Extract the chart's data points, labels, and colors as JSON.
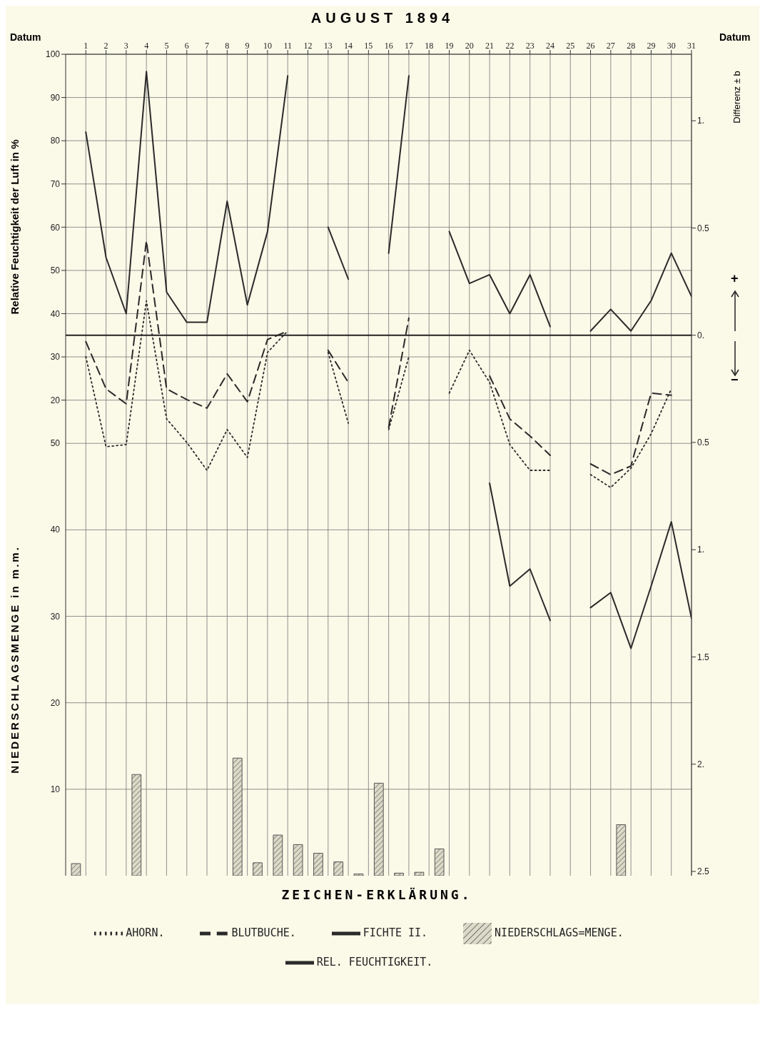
{
  "chart_data": {
    "type": "line",
    "title": "AUGUST 1894",
    "xlabel": "Datum",
    "ylabel": "Relative Feuchtigkeit der Luft in %",
    "y2label": "Differenz ± b",
    "y3label": "NIEDERSCHLAGSMENGE in m.m.",
    "legend_title": "ZEICHEN-ERKLÄRUNG.",
    "annotations": [
      "+",
      "−"
    ],
    "xlim": [
      0,
      31
    ],
    "xticks": [
      1,
      2,
      3,
      4,
      5,
      6,
      7,
      8,
      9,
      10,
      11,
      12,
      13,
      14,
      15,
      16,
      17,
      18,
      19,
      20,
      21,
      22,
      23,
      24,
      25,
      26,
      27,
      28,
      29,
      30,
      31
    ],
    "ylim": [
      -90,
      100
    ],
    "yticks": [
      20,
      30,
      40,
      50,
      60,
      70,
      80,
      90,
      100
    ],
    "y2lim": [
      -2.52,
      1.31
    ],
    "y2ticks": [
      {
        "value": 1,
        "label": "1."
      },
      {
        "value": 0.5,
        "label": "0.5"
      },
      {
        "value": 0,
        "label": "0."
      },
      {
        "value": -0.5,
        "label": "0.5"
      },
      {
        "value": -1,
        "label": "1."
      },
      {
        "value": -1.5,
        "label": "1.5"
      },
      {
        "value": -2,
        "label": "2."
      },
      {
        "value": -2.5,
        "label": "2.5"
      }
    ],
    "y3lim": [
      0,
      95
    ],
    "y3ticks": [
      10,
      20,
      30,
      40,
      50
    ],
    "x": [
      1,
      2,
      3,
      4,
      5,
      6,
      7,
      8,
      9,
      10,
      11,
      12,
      13,
      14,
      15,
      16,
      17,
      18,
      19,
      20,
      21,
      22,
      23,
      24,
      25,
      26,
      27,
      28,
      29,
      30,
      31
    ],
    "series": [
      {
        "name": "FICHTE II.",
        "color": "#2a2a2a",
        "line_style": "solid",
        "axis": "y2",
        "values": [
          null,
          null,
          null,
          null,
          null,
          null,
          null,
          null,
          null,
          null,
          null,
          null,
          null,
          null,
          null,
          null,
          null,
          null,
          null,
          null,
          -0.69,
          -1.17,
          -1.09,
          -1.33,
          null,
          -1.27,
          -1.2,
          -1.46,
          -1.17,
          -0.87,
          -1.32
        ]
      },
      {
        "name": "BLUTBUCHE.",
        "color": "#2a2a2a",
        "line_style": "dashed",
        "axis": "y2",
        "values": [
          -0.03,
          -0.25,
          -0.32,
          0.44,
          -0.25,
          -0.3,
          -0.34,
          -0.18,
          -0.31,
          -0.02,
          0.02,
          null,
          -0.07,
          -0.22,
          null,
          -0.43,
          0.08,
          null,
          null,
          null,
          -0.19,
          -0.39,
          -0.47,
          -0.56,
          null,
          -0.6,
          -0.65,
          -0.61,
          -0.27,
          -0.28,
          null
        ]
      },
      {
        "name": "AHORN.",
        "color": "#2a2a2a",
        "line_style": "dotted",
        "axis": "y2",
        "values": [
          -0.1,
          -0.52,
          -0.51,
          0.16,
          -0.39,
          -0.5,
          -0.63,
          -0.44,
          -0.57,
          -0.08,
          0.02,
          null,
          -0.08,
          -0.41,
          null,
          -0.44,
          -0.1,
          null,
          -0.27,
          -0.07,
          -0.22,
          -0.51,
          -0.63,
          -0.63,
          null,
          -0.65,
          -0.71,
          -0.62,
          -0.46,
          -0.25,
          null
        ]
      },
      {
        "name": "REL. FEUCHTIGKEIT.",
        "color": "#2a2a2a",
        "line_style": "solid",
        "values": [
          82,
          53,
          40,
          96,
          45,
          38,
          38,
          66,
          42,
          59,
          95,
          null,
          60,
          48,
          null,
          54,
          95,
          null,
          59,
          47,
          49,
          40,
          49,
          37,
          null,
          36,
          41,
          36,
          43,
          54,
          44
        ]
      },
      {
        "name": "NIEDERSCHLAGS=MENGE.",
        "type": "bar",
        "color": "#555555",
        "axis": "y3",
        "x": [
          0.5,
          3.5,
          8.5,
          9.5,
          10.5,
          11.5,
          12.5,
          13.5,
          14.5,
          15.5,
          16.5,
          17.5,
          18.5,
          27.5
        ],
        "values": [
          1.4,
          11.7,
          13.6,
          1.5,
          4.7,
          3.6,
          2.6,
          1.6,
          0.2,
          10.7,
          0.3,
          0.4,
          3.1,
          5.9
        ]
      }
    ],
    "ref_lines": [
      {
        "axis": "y2",
        "value": 0
      }
    ],
    "grid": true,
    "legend": "bottom",
    "marker": "none"
  }
}
